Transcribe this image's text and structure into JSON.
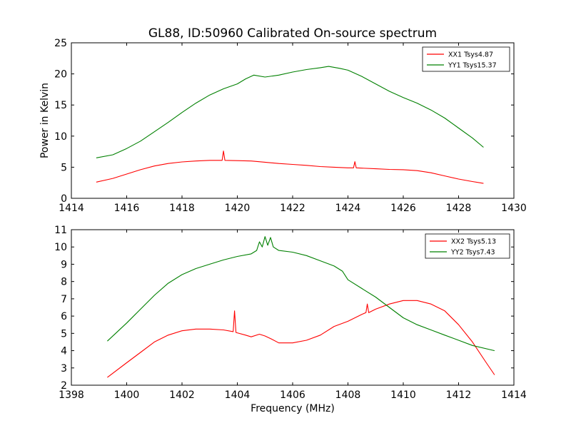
{
  "figure": {
    "title": "GL88, ID:50960 Calibrated On-source spectrum",
    "xlabel": "Frequency (MHz)",
    "ylabel": "Power in Kelvin"
  },
  "chart_data": [
    {
      "type": "line",
      "title": "GL88, ID:50960 Calibrated On-source spectrum",
      "ylabel": "Power in Kelvin",
      "xlabel": "",
      "xlim": [
        1414,
        1430
      ],
      "ylim": [
        0,
        25
      ],
      "xticks": [
        1414,
        1416,
        1418,
        1420,
        1422,
        1424,
        1426,
        1428,
        1430
      ],
      "yticks": [
        0,
        5,
        10,
        15,
        20,
        25
      ],
      "grid": false,
      "legend_position": "top-right",
      "series": [
        {
          "name": "XX1 Tsys4.87",
          "color": "#ff0000",
          "x": [
            1414.9,
            1415.5,
            1416.0,
            1416.5,
            1417.0,
            1417.5,
            1418.0,
            1418.5,
            1419.0,
            1419.45,
            1419.5,
            1419.55,
            1420.0,
            1420.5,
            1421.0,
            1421.5,
            1422.0,
            1422.5,
            1423.0,
            1423.5,
            1424.0,
            1424.2,
            1424.25,
            1424.3,
            1424.5,
            1425.0,
            1425.5,
            1426.0,
            1426.5,
            1427.0,
            1427.5,
            1428.0,
            1428.5,
            1428.9
          ],
          "y": [
            2.6,
            3.2,
            3.9,
            4.6,
            5.2,
            5.6,
            5.85,
            6.0,
            6.1,
            6.1,
            7.6,
            6.1,
            6.05,
            6.0,
            5.8,
            5.6,
            5.45,
            5.3,
            5.1,
            5.0,
            4.9,
            4.9,
            5.9,
            4.9,
            4.85,
            4.75,
            4.65,
            4.6,
            4.45,
            4.1,
            3.6,
            3.1,
            2.7,
            2.4
          ]
        },
        {
          "name": "YY1 Tsys15.37",
          "color": "#008000",
          "x": [
            1414.9,
            1415.5,
            1416.0,
            1416.5,
            1417.0,
            1417.5,
            1418.0,
            1418.5,
            1419.0,
            1419.5,
            1420.0,
            1420.3,
            1420.6,
            1421.0,
            1421.5,
            1422.0,
            1422.5,
            1423.0,
            1423.3,
            1423.7,
            1424.0,
            1424.5,
            1425.0,
            1425.5,
            1426.0,
            1426.5,
            1427.0,
            1427.5,
            1428.0,
            1428.5,
            1428.9
          ],
          "y": [
            6.5,
            7.0,
            8.0,
            9.2,
            10.7,
            12.2,
            13.8,
            15.3,
            16.6,
            17.6,
            18.4,
            19.2,
            19.8,
            19.5,
            19.8,
            20.3,
            20.7,
            21.0,
            21.2,
            20.9,
            20.6,
            19.6,
            18.4,
            17.2,
            16.2,
            15.3,
            14.2,
            12.9,
            11.3,
            9.7,
            8.2
          ]
        }
      ]
    },
    {
      "type": "line",
      "title": "",
      "xlabel": "Frequency (MHz)",
      "ylabel": "",
      "xlim": [
        1398,
        1414
      ],
      "ylim": [
        2,
        11
      ],
      "xticks": [
        1398,
        1400,
        1402,
        1404,
        1406,
        1408,
        1410,
        1412,
        1414
      ],
      "yticks": [
        2,
        3,
        4,
        5,
        6,
        7,
        8,
        9,
        10,
        11
      ],
      "grid": false,
      "legend_position": "top-right",
      "series": [
        {
          "name": "XX2 Tsys5.13",
          "color": "#ff0000",
          "x": [
            1399.3,
            1400.0,
            1400.5,
            1401.0,
            1401.5,
            1402.0,
            1402.5,
            1403.0,
            1403.5,
            1403.85,
            1403.9,
            1403.95,
            1404.3,
            1404.5,
            1404.8,
            1405.0,
            1405.2,
            1405.5,
            1406.0,
            1406.5,
            1407.0,
            1407.5,
            1408.0,
            1408.5,
            1408.65,
            1408.7,
            1408.75,
            1409.0,
            1409.5,
            1410.0,
            1410.5,
            1411.0,
            1411.5,
            1412.0,
            1412.5,
            1413.0,
            1413.3
          ],
          "y": [
            2.45,
            3.3,
            3.9,
            4.5,
            4.9,
            5.15,
            5.25,
            5.25,
            5.2,
            5.1,
            6.3,
            5.05,
            4.9,
            4.8,
            4.95,
            4.85,
            4.7,
            4.45,
            4.45,
            4.6,
            4.9,
            5.4,
            5.7,
            6.1,
            6.2,
            6.7,
            6.2,
            6.4,
            6.7,
            6.9,
            6.9,
            6.7,
            6.3,
            5.5,
            4.5,
            3.3,
            2.6
          ]
        },
        {
          "name": "YY2 Tsys7.43",
          "color": "#008000",
          "x": [
            1399.3,
            1400.0,
            1400.5,
            1401.0,
            1401.5,
            1402.0,
            1402.5,
            1403.0,
            1403.5,
            1404.0,
            1404.5,
            1404.7,
            1404.8,
            1404.9,
            1405.0,
            1405.1,
            1405.2,
            1405.3,
            1405.5,
            1406.0,
            1406.5,
            1407.0,
            1407.5,
            1407.8,
            1408.0,
            1408.5,
            1409.0,
            1409.5,
            1410.0,
            1410.5,
            1411.0,
            1411.5,
            1412.0,
            1412.5,
            1413.3
          ],
          "y": [
            4.55,
            5.6,
            6.4,
            7.2,
            7.9,
            8.4,
            8.75,
            9.0,
            9.25,
            9.45,
            9.6,
            9.8,
            10.3,
            10.0,
            10.6,
            10.1,
            10.55,
            10.0,
            9.8,
            9.7,
            9.5,
            9.2,
            8.9,
            8.6,
            8.1,
            7.6,
            7.1,
            6.5,
            5.9,
            5.5,
            5.2,
            4.9,
            4.6,
            4.3,
            4.0
          ]
        }
      ]
    }
  ]
}
